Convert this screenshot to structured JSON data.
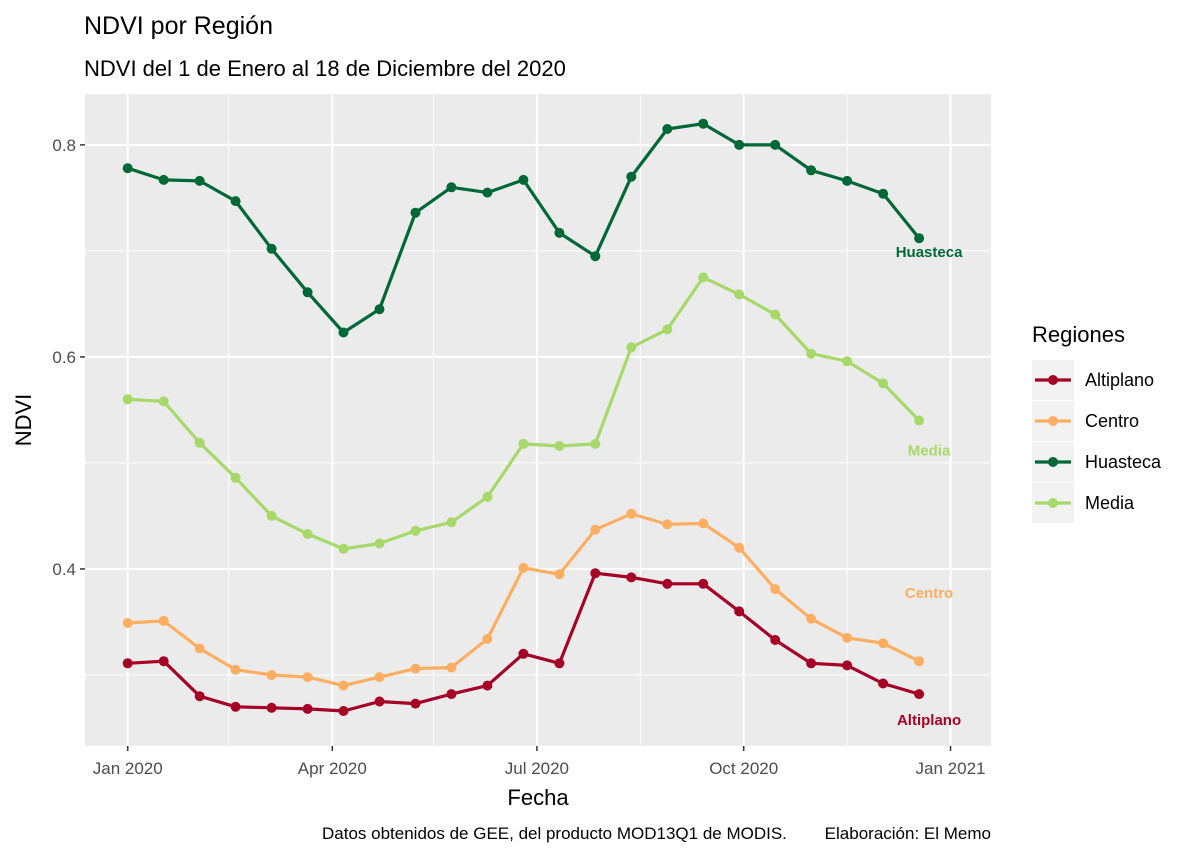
{
  "chart_data": {
    "type": "line",
    "title": "NDVI por Región",
    "subtitle": "NDVI del 1 de Enero al 18 de Diciembre del 2020",
    "xlabel": "Fecha",
    "ylabel": "NDVI",
    "caption": "Datos obtenidos de GEE, del producto MOD13Q1 de MODIS.        Elaboración: El Memo",
    "x_ticks": [
      {
        "date": "2020-01-01",
        "label": "Jan 2020"
      },
      {
        "date": "2020-04-01",
        "label": "Apr 2020"
      },
      {
        "date": "2020-07-01",
        "label": "Jul 2020"
      },
      {
        "date": "2020-10-01",
        "label": "Oct 2020"
      },
      {
        "date": "2021-01-01",
        "label": "Jan 2021"
      }
    ],
    "y_ticks": [
      0.4,
      0.6,
      0.8
    ],
    "y_range": [
      0.233,
      0.848
    ],
    "x_range": [
      "2019-12-13",
      "2021-01-19"
    ],
    "grid": true,
    "legend": {
      "title": "Regiones",
      "position": "right"
    },
    "x": [
      "2020-01-01",
      "2020-01-17",
      "2020-02-02",
      "2020-02-18",
      "2020-03-05",
      "2020-03-21",
      "2020-04-06",
      "2020-04-22",
      "2020-05-08",
      "2020-05-24",
      "2020-06-09",
      "2020-06-25",
      "2020-07-11",
      "2020-07-27",
      "2020-08-12",
      "2020-08-28",
      "2020-09-13",
      "2020-09-29",
      "2020-10-15",
      "2020-10-31",
      "2020-11-16",
      "2020-12-02",
      "2020-12-18"
    ],
    "series": [
      {
        "name": "Altiplano",
        "color": "#A50026",
        "values": [
          0.311,
          0.313,
          0.28,
          0.27,
          0.269,
          0.268,
          0.266,
          0.275,
          0.273,
          0.282,
          0.29,
          0.32,
          0.311,
          0.396,
          0.392,
          0.386,
          0.386,
          0.36,
          0.333,
          0.311,
          0.309,
          0.292,
          0.282
        ]
      },
      {
        "name": "Centro",
        "color": "#FDAE61",
        "values": [
          0.349,
          0.351,
          0.325,
          0.305,
          0.3,
          0.298,
          0.29,
          0.298,
          0.306,
          0.307,
          0.334,
          0.401,
          0.395,
          0.437,
          0.452,
          0.442,
          0.443,
          0.42,
          0.381,
          0.353,
          0.335,
          0.33,
          0.313
        ]
      },
      {
        "name": "Huasteca",
        "color": "#006837",
        "values": [
          0.778,
          0.767,
          0.766,
          0.747,
          0.702,
          0.661,
          0.623,
          0.645,
          0.736,
          0.76,
          0.755,
          0.767,
          0.717,
          0.695,
          0.77,
          0.815,
          0.82,
          0.8,
          0.8,
          0.776,
          0.766,
          0.754,
          0.712
        ]
      },
      {
        "name": "Media",
        "color": "#A6D96A",
        "values": [
          0.56,
          0.558,
          0.519,
          0.486,
          0.45,
          0.433,
          0.419,
          0.424,
          0.436,
          0.444,
          0.468,
          0.518,
          0.516,
          0.518,
          0.609,
          0.626,
          0.675,
          0.659,
          0.64,
          0.603,
          0.596,
          0.575,
          0.54
        ]
      }
    ]
  }
}
